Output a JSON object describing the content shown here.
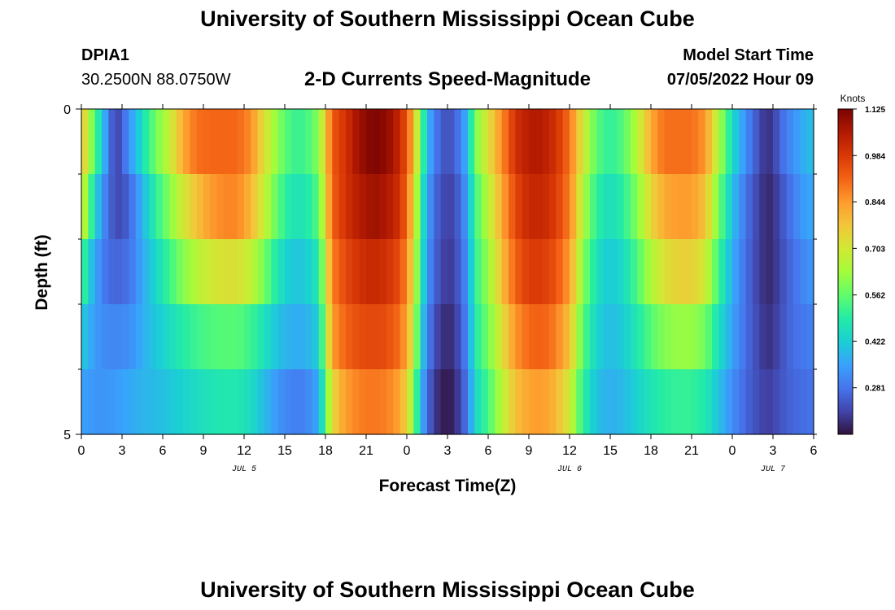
{
  "page_title": "University of Southern Mississippi Ocean Cube",
  "station": {
    "id": "DPIA1",
    "coords": "30.2500N  88.0750W"
  },
  "chart_title": "2-D Currents Speed-Magnitude",
  "model": {
    "label": "Model Start Time",
    "value": "07/05/2022 Hour 09"
  },
  "footer_title": "University of Southern Mississippi Ocean Cube",
  "chart_data": {
    "type": "heatmap",
    "title": "2-D Currents Speed-Magnitude",
    "xlabel": "Forecast Time(Z)",
    "ylabel": "Depth (ft)",
    "x_tick_labels": [
      "0",
      "3",
      "6",
      "9",
      "12",
      "15",
      "18",
      "21",
      "0",
      "3",
      "6",
      "9",
      "12",
      "15",
      "18",
      "21",
      "0",
      "3",
      "6"
    ],
    "x_range_hours": [
      0,
      54
    ],
    "y_tick_labels": [
      "0",
      "5"
    ],
    "y_range": [
      0,
      5
    ],
    "date_labels": [
      {
        "text": "JUL 5",
        "hour": 12
      },
      {
        "text": "JUL 6",
        "hour": 36
      },
      {
        "text": "JUL 7",
        "hour": 51
      }
    ],
    "colorbar": {
      "unit": "Knots",
      "ticks": [
        "1.125",
        "0.984",
        "0.844",
        "0.703",
        "0.562",
        "0.422",
        "0.281"
      ],
      "tick_values": [
        1.125,
        0.984,
        0.844,
        0.703,
        0.562,
        0.422,
        0.281
      ],
      "range": [
        0.14,
        1.125
      ],
      "colors": [
        "#30123b",
        "#4145ab",
        "#4675ed",
        "#39a2fc",
        "#1bcfd4",
        "#24eca6",
        "#61fc6c",
        "#a4fc3b",
        "#d1e834",
        "#f3c63a",
        "#fe9b2d",
        "#f36315",
        "#d93806",
        "#b11901",
        "#7a0402"
      ]
    },
    "depth_rows": [
      0,
      1,
      2,
      3,
      4,
      5
    ],
    "time_step_hours": 0.5,
    "row_profiles": [
      {
        "row": 0,
        "x": [
          0,
          0.5,
          1,
          1.5,
          2,
          2.5,
          3,
          3.5,
          4,
          4.5,
          5.5,
          6.5,
          7.5,
          8.5,
          9.5,
          10.5,
          11.5,
          12.5,
          13.5,
          14.5,
          15.5,
          16.5,
          17.5,
          18.5,
          19.5,
          20.5,
          21.5,
          22.5,
          23.5,
          24,
          24.5,
          25,
          25.5,
          26,
          26.5,
          27,
          27.5,
          28,
          28.5,
          29,
          30,
          31,
          32,
          33,
          34,
          35,
          36,
          37,
          38,
          39,
          40,
          41,
          42,
          43,
          44,
          45,
          46,
          47,
          48,
          49,
          50,
          50.5,
          51,
          51.5,
          52,
          52.5,
          53,
          53.5,
          54
        ],
        "v": [
          0.8,
          0.66,
          0.55,
          0.42,
          0.3,
          0.2,
          0.24,
          0.33,
          0.38,
          0.46,
          0.58,
          0.68,
          0.82,
          0.9,
          0.91,
          0.91,
          0.91,
          0.86,
          0.72,
          0.6,
          0.52,
          0.52,
          0.6,
          0.93,
          1.0,
          1.08,
          1.12,
          1.1,
          1.02,
          0.93,
          0.8,
          0.58,
          0.4,
          0.3,
          0.25,
          0.22,
          0.25,
          0.3,
          0.4,
          0.58,
          0.72,
          0.86,
          1.0,
          1.05,
          1.05,
          1.0,
          0.9,
          0.7,
          0.55,
          0.5,
          0.55,
          0.66,
          0.82,
          0.9,
          0.9,
          0.9,
          0.85,
          0.65,
          0.45,
          0.32,
          0.22,
          0.18,
          0.2,
          0.25,
          0.3,
          0.32,
          0.36,
          0.38,
          0.4
        ]
      },
      {
        "row": 1,
        "x": [
          0,
          0.5,
          1,
          1.5,
          2,
          2.5,
          3,
          3.5,
          4,
          4.5,
          5.5,
          6.5,
          7.5,
          8.5,
          9.5,
          10.5,
          11.5,
          12.5,
          13.5,
          14.5,
          15.5,
          16.5,
          17.5,
          18.5,
          19.5,
          20.5,
          21.5,
          22.5,
          23.5,
          24,
          24.5,
          25,
          25.5,
          26,
          26.5,
          27,
          27.5,
          28,
          28.5,
          29,
          30,
          31,
          32,
          33,
          34,
          35,
          36,
          37,
          38,
          39,
          40,
          41,
          42,
          43,
          44,
          45,
          46,
          47,
          48,
          49,
          50,
          50.5,
          51,
          51.5,
          52,
          52.5,
          53,
          53.5,
          54
        ],
        "v": [
          0.72,
          0.58,
          0.44,
          0.34,
          0.27,
          0.22,
          0.22,
          0.26,
          0.31,
          0.38,
          0.5,
          0.6,
          0.7,
          0.78,
          0.84,
          0.87,
          0.87,
          0.8,
          0.68,
          0.55,
          0.47,
          0.47,
          0.55,
          0.92,
          1.0,
          1.05,
          1.08,
          1.06,
          1.0,
          0.9,
          0.75,
          0.52,
          0.36,
          0.27,
          0.23,
          0.2,
          0.22,
          0.27,
          0.36,
          0.52,
          0.66,
          0.82,
          0.96,
          1.02,
          1.02,
          0.98,
          0.88,
          0.65,
          0.5,
          0.45,
          0.5,
          0.6,
          0.74,
          0.82,
          0.84,
          0.84,
          0.78,
          0.58,
          0.4,
          0.28,
          0.2,
          0.17,
          0.18,
          0.22,
          0.26,
          0.29,
          0.33,
          0.35,
          0.36
        ]
      },
      {
        "row": 2,
        "x": [
          0,
          0.5,
          1,
          1.5,
          2,
          2.5,
          3,
          3.5,
          4,
          4.5,
          5.5,
          6.5,
          7.5,
          8.5,
          9.5,
          10.5,
          11.5,
          12.5,
          13.5,
          14.5,
          15.5,
          16.5,
          17.5,
          18.5,
          19.5,
          20.5,
          21.5,
          22.5,
          23.5,
          24,
          24.5,
          25,
          25.5,
          26,
          26.5,
          27,
          27.5,
          28,
          28.5,
          29,
          30,
          31,
          32,
          33,
          34,
          35,
          36,
          37,
          38,
          39,
          40,
          41,
          42,
          43,
          44,
          45,
          46,
          47,
          48,
          49,
          50,
          50.5,
          51,
          51.5,
          52,
          52.5,
          53,
          53.5,
          54
        ],
        "v": [
          0.55,
          0.44,
          0.36,
          0.3,
          0.27,
          0.26,
          0.26,
          0.28,
          0.31,
          0.36,
          0.44,
          0.52,
          0.6,
          0.66,
          0.7,
          0.72,
          0.72,
          0.68,
          0.58,
          0.47,
          0.41,
          0.41,
          0.48,
          0.88,
          0.96,
          1.0,
          1.02,
          1.0,
          0.95,
          0.86,
          0.72,
          0.5,
          0.34,
          0.26,
          0.22,
          0.19,
          0.21,
          0.26,
          0.34,
          0.5,
          0.62,
          0.78,
          0.92,
          0.98,
          0.98,
          0.94,
          0.84,
          0.6,
          0.46,
          0.41,
          0.45,
          0.54,
          0.65,
          0.72,
          0.75,
          0.75,
          0.7,
          0.52,
          0.37,
          0.27,
          0.2,
          0.17,
          0.18,
          0.21,
          0.25,
          0.27,
          0.3,
          0.32,
          0.33
        ]
      },
      {
        "row": 3,
        "x": [
          0,
          0.5,
          1,
          1.5,
          2,
          2.5,
          3,
          3.5,
          4,
          4.5,
          5.5,
          6.5,
          7.5,
          8.5,
          9.5,
          10.5,
          11.5,
          12.5,
          13.5,
          14.5,
          15.5,
          16.5,
          17.5,
          18.5,
          19.5,
          20.5,
          21.5,
          22.5,
          23.5,
          24,
          24.5,
          25,
          25.5,
          26,
          26.5,
          27,
          27.5,
          28,
          28.5,
          29,
          30,
          31,
          32,
          33,
          34,
          35,
          36,
          37,
          38,
          39,
          40,
          41,
          42,
          43,
          44,
          45,
          46,
          47,
          48,
          49,
          50,
          50.5,
          51,
          51.5,
          52,
          52.5,
          53,
          53.5,
          54
        ],
        "v": [
          0.42,
          0.38,
          0.34,
          0.32,
          0.31,
          0.31,
          0.31,
          0.32,
          0.34,
          0.37,
          0.41,
          0.45,
          0.49,
          0.52,
          0.54,
          0.55,
          0.55,
          0.52,
          0.46,
          0.4,
          0.37,
          0.37,
          0.42,
          0.84,
          0.92,
          0.95,
          0.96,
          0.95,
          0.9,
          0.82,
          0.68,
          0.46,
          0.31,
          0.23,
          0.19,
          0.17,
          0.19,
          0.24,
          0.32,
          0.48,
          0.58,
          0.72,
          0.85,
          0.91,
          0.92,
          0.88,
          0.78,
          0.55,
          0.43,
          0.39,
          0.42,
          0.48,
          0.55,
          0.6,
          0.62,
          0.62,
          0.58,
          0.46,
          0.35,
          0.27,
          0.21,
          0.18,
          0.19,
          0.22,
          0.25,
          0.27,
          0.28,
          0.29,
          0.3
        ]
      },
      {
        "row": 4,
        "x": [
          0,
          0.5,
          1,
          1.5,
          2,
          2.5,
          3,
          3.5,
          4,
          4.5,
          5.5,
          6.5,
          7.5,
          8.5,
          9.5,
          10.5,
          11.5,
          12.5,
          13.5,
          14.5,
          15.5,
          16.5,
          17.5,
          18.5,
          19.5,
          20.5,
          21.5,
          22.5,
          23.5,
          24,
          24.5,
          25,
          25.5,
          26,
          26.5,
          27,
          27.5,
          28,
          28.5,
          29,
          30,
          31,
          32,
          33,
          34,
          35,
          36,
          37,
          38,
          39,
          40,
          41,
          42,
          43,
          44,
          45,
          46,
          47,
          48,
          49,
          50,
          50.5,
          51,
          51.5,
          52,
          52.5,
          53,
          53.5,
          54
        ],
        "v": [
          0.35,
          0.34,
          0.33,
          0.33,
          0.33,
          0.34,
          0.35,
          0.36,
          0.37,
          0.38,
          0.39,
          0.41,
          0.43,
          0.45,
          0.47,
          0.48,
          0.48,
          0.45,
          0.39,
          0.33,
          0.3,
          0.3,
          0.36,
          0.74,
          0.84,
          0.88,
          0.89,
          0.88,
          0.83,
          0.74,
          0.6,
          0.4,
          0.27,
          0.2,
          0.16,
          0.15,
          0.17,
          0.22,
          0.3,
          0.44,
          0.53,
          0.66,
          0.78,
          0.83,
          0.84,
          0.8,
          0.7,
          0.5,
          0.4,
          0.37,
          0.39,
          0.43,
          0.47,
          0.5,
          0.51,
          0.51,
          0.48,
          0.4,
          0.32,
          0.26,
          0.22,
          0.2,
          0.21,
          0.23,
          0.25,
          0.26,
          0.27,
          0.27,
          0.28
        ]
      }
    ]
  }
}
